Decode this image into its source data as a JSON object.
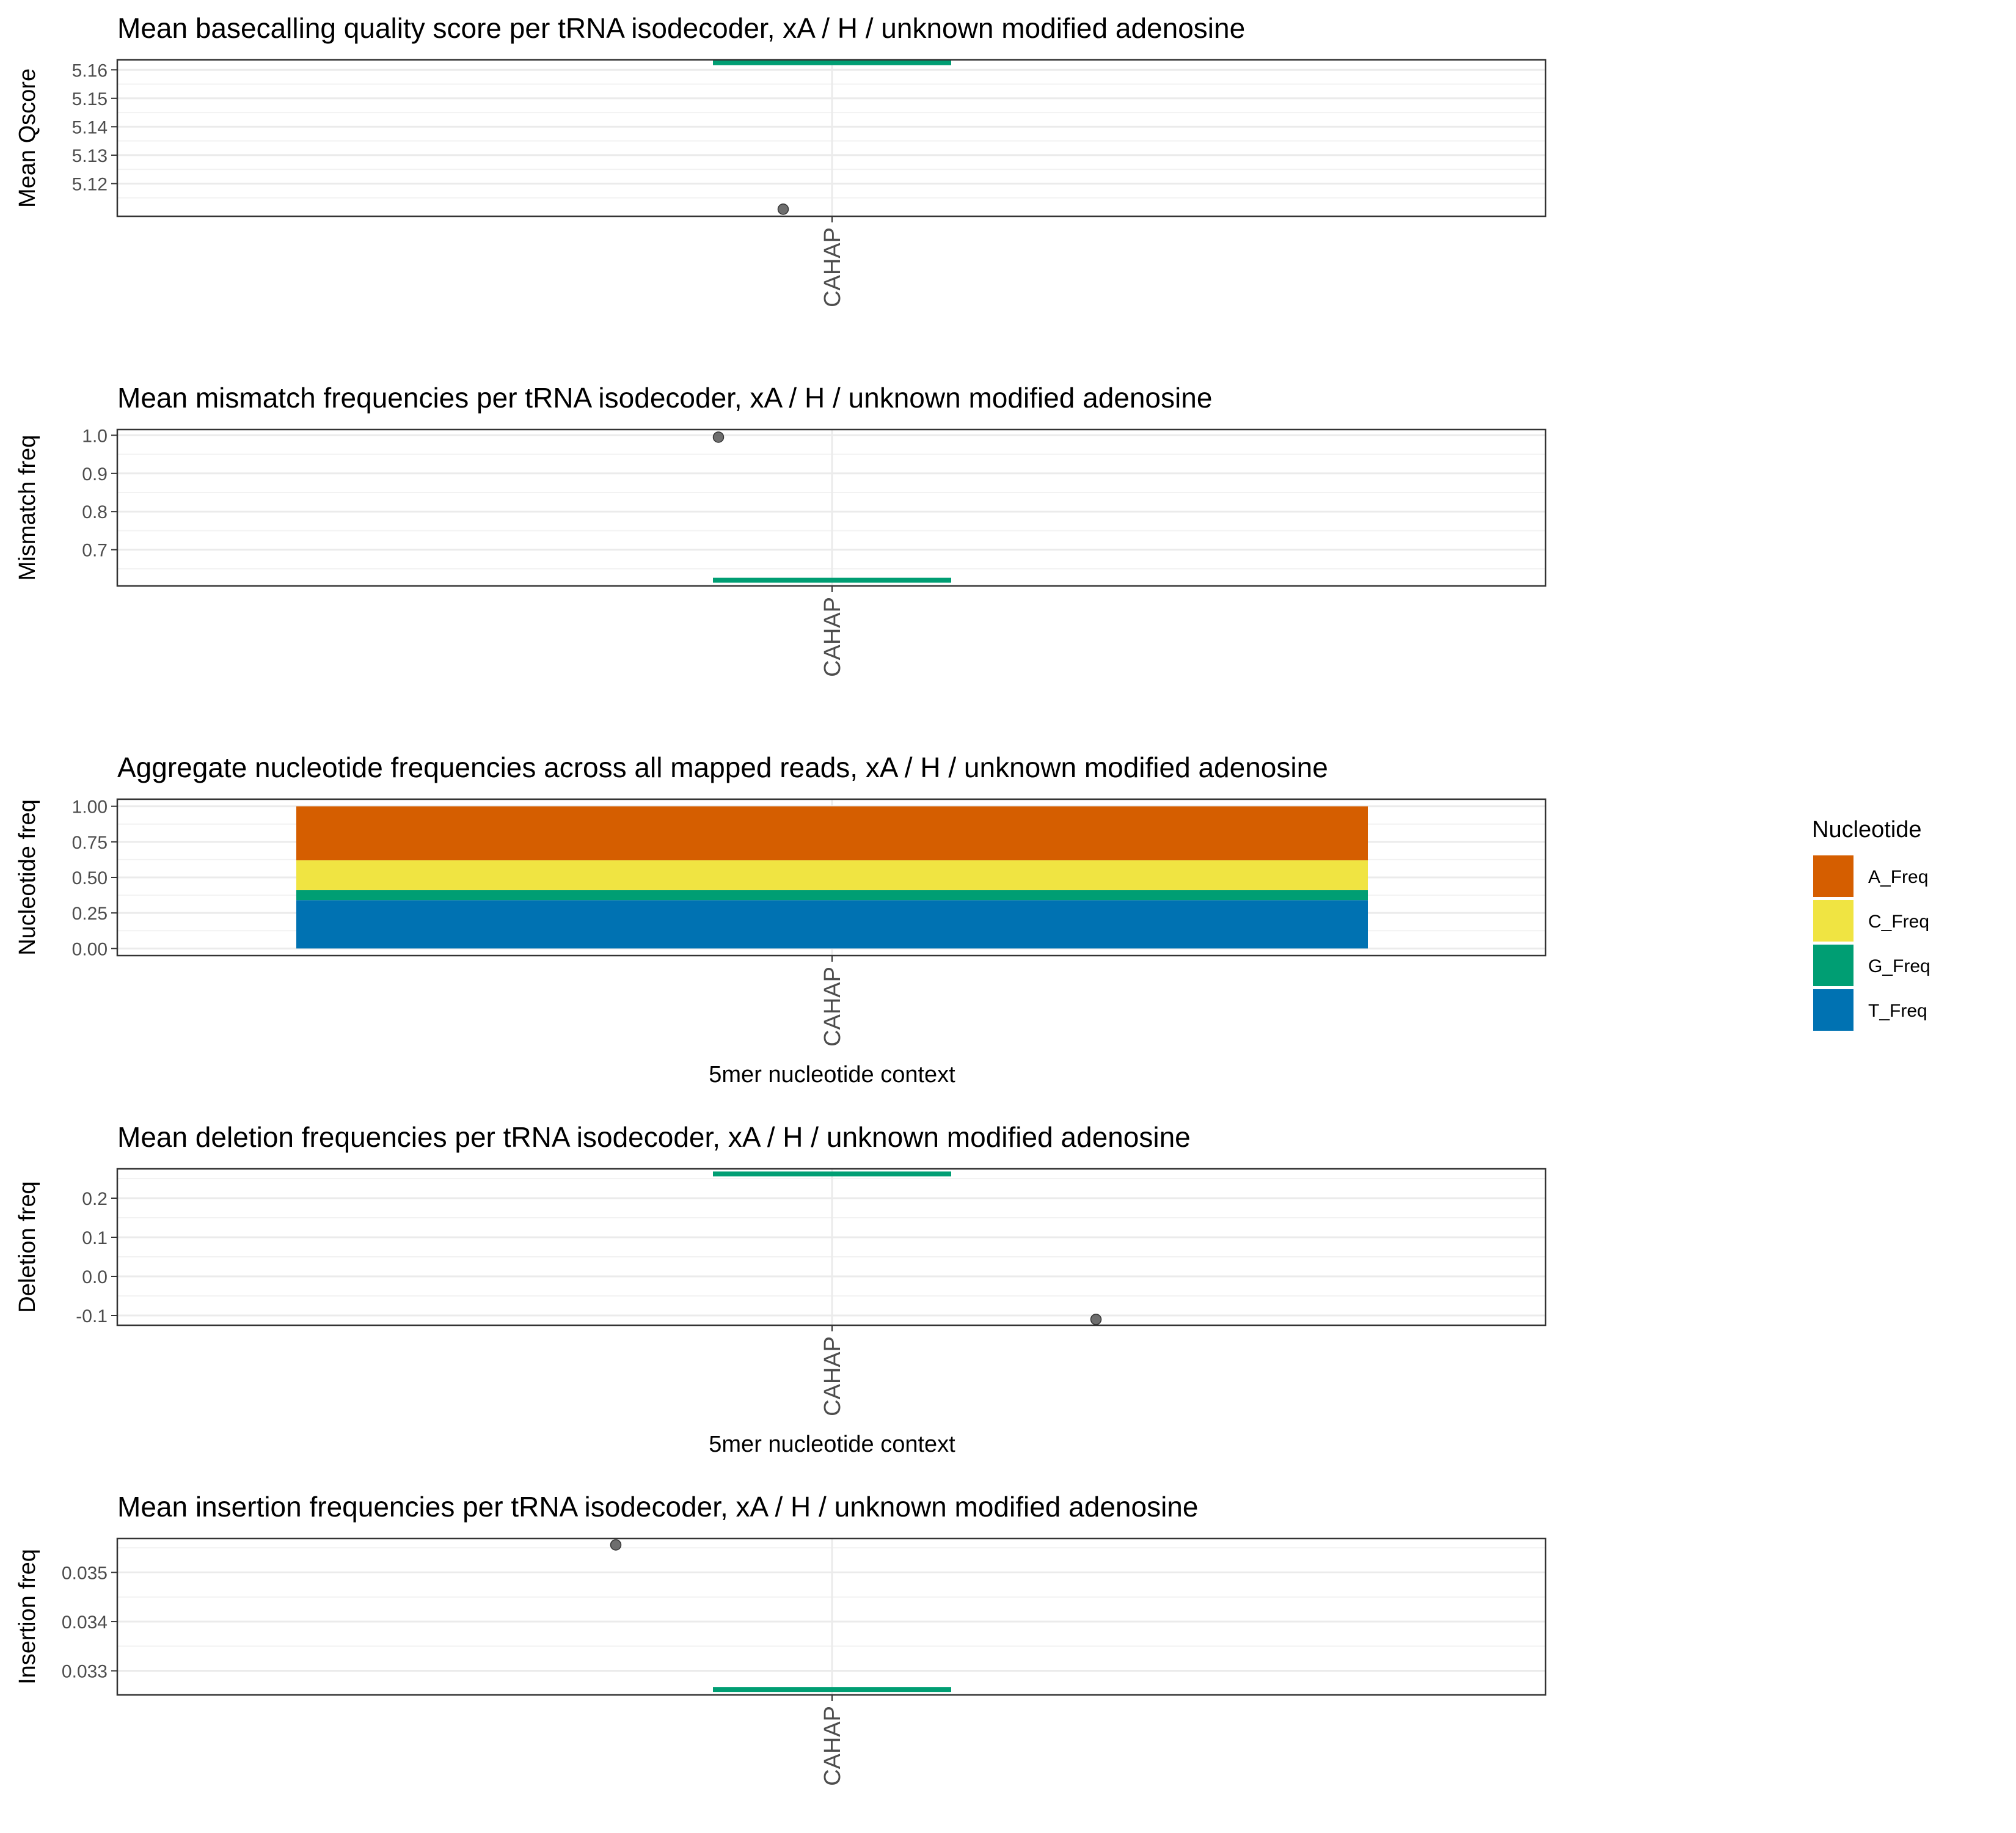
{
  "chart_data": [
    {
      "type": "boxplot",
      "title": "Mean basecalling quality score per tRNA isodecoder, xA / H / unknown modified adenosine",
      "ylabel": "Mean Qscore",
      "xlabel": "",
      "categories": [
        "CAHAP"
      ],
      "ylim": [
        5.1085,
        5.1635
      ],
      "yticks": [
        5.12,
        5.13,
        5.14,
        5.15,
        5.16
      ],
      "ytick_labels": [
        "5.12",
        "5.13",
        "5.14",
        "5.15",
        "5.16"
      ],
      "median": 5.1625,
      "points": [
        {
          "category": "CAHAP",
          "y": 5.111
        }
      ],
      "grid": true,
      "colors": {
        "median": "#009E73",
        "point": "#555555"
      }
    },
    {
      "type": "boxplot",
      "title": "Mean mismatch frequencies per tRNA isodecoder, xA / H / unknown modified adenosine",
      "ylabel": "Mismatch freq",
      "xlabel": "",
      "categories": [
        "CAHAP"
      ],
      "ylim": [
        0.605,
        1.015
      ],
      "yticks": [
        0.7,
        0.8,
        0.9,
        1.0
      ],
      "ytick_labels": [
        "0.7",
        "0.8",
        "0.9",
        "1.0"
      ],
      "median": 0.62,
      "points": [
        {
          "category": "CAHAP",
          "y": 0.995
        }
      ],
      "grid": true,
      "colors": {
        "median": "#009E73",
        "point": "#555555"
      }
    },
    {
      "type": "bar",
      "stacked": true,
      "title": "Aggregate nucleotide frequencies across all mapped reads,  xA / H / unknown modified adenosine",
      "ylabel": "Nucleotide freq",
      "xlabel": "5mer nucleotide context",
      "categories": [
        "CAHAP"
      ],
      "ylim": [
        -0.05,
        1.05
      ],
      "yticks": [
        0,
        0.25,
        0.5,
        0.75,
        1.0
      ],
      "ytick_labels": [
        "0.00",
        "0.25",
        "0.50",
        "0.75",
        "1.00"
      ],
      "series": [
        {
          "name": "A_Freq",
          "values": [
            0.38
          ],
          "color": "#D55E00"
        },
        {
          "name": "C_Freq",
          "values": [
            0.21
          ],
          "color": "#F0E442"
        },
        {
          "name": "G_Freq",
          "values": [
            0.07
          ],
          "color": "#009E73"
        },
        {
          "name": "T_Freq",
          "values": [
            0.34
          ],
          "color": "#0072B2"
        }
      ],
      "grid": true,
      "legend": {
        "title": "Nucleotide",
        "position": "right"
      }
    },
    {
      "type": "boxplot",
      "title": "Mean deletion frequencies per tRNA isodecoder, xA / H / unknown modified adenosine",
      "ylabel": "Deletion freq",
      "xlabel": "5mer nucleotide context",
      "categories": [
        "CAHAP"
      ],
      "ylim": [
        -0.125,
        0.275
      ],
      "yticks": [
        -0.1,
        0.0,
        0.1,
        0.2
      ],
      "ytick_labels": [
        "-0.1",
        "0.0",
        "0.1",
        "0.2"
      ],
      "median": 0.262,
      "points": [
        {
          "category": "CAHAP",
          "y": -0.11
        }
      ],
      "grid": true,
      "colors": {
        "median": "#009E73",
        "point": "#555555"
      }
    },
    {
      "type": "boxplot",
      "title": "Mean insertion frequencies per tRNA isodecoder, xA / H / unknown modified adenosine",
      "ylabel": "Insertion freq",
      "xlabel": "",
      "categories": [
        "CAHAP"
      ],
      "ylim": [
        0.03251,
        0.03569
      ],
      "yticks": [
        0.033,
        0.034,
        0.035
      ],
      "ytick_labels": [
        "0.033",
        "0.034",
        "0.035"
      ],
      "median": 0.03262,
      "points": [
        {
          "category": "CAHAP",
          "y": 0.03556
        }
      ],
      "grid": true,
      "colors": {
        "median": "#009E73",
        "point": "#555555"
      }
    }
  ]
}
